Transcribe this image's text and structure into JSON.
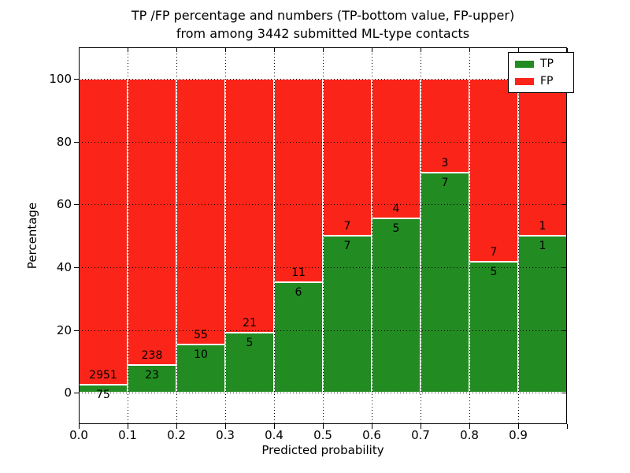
{
  "title_line1": "TP /FP percentage and numbers (TP-bottom value, FP-upper)",
  "title_line2": "from among 3442 submitted ML-type contacts",
  "chart_data": {
    "type": "bar",
    "stacked": true,
    "normalized": "each bin scaled to 100%",
    "title": "TP /FP percentage and numbers (TP-bottom value, FP-upper)\nfrom among 3442 submitted ML-type contacts",
    "xlabel": "Predicted probability",
    "ylabel": "Percentage",
    "bins": [
      {
        "x_start": 0.0,
        "x_end": 0.1
      },
      {
        "x_start": 0.1,
        "x_end": 0.2
      },
      {
        "x_start": 0.2,
        "x_end": 0.3
      },
      {
        "x_start": 0.3,
        "x_end": 0.4
      },
      {
        "x_start": 0.4,
        "x_end": 0.5
      },
      {
        "x_start": 0.5,
        "x_end": 0.6
      },
      {
        "x_start": 0.6,
        "x_end": 0.7
      },
      {
        "x_start": 0.7,
        "x_end": 0.8
      },
      {
        "x_start": 0.8,
        "x_end": 0.9
      },
      {
        "x_start": 0.9,
        "x_end": 1.0
      }
    ],
    "series": [
      {
        "name": "TP",
        "color": "#228b22",
        "counts": [
          75,
          23,
          10,
          5,
          6,
          7,
          5,
          7,
          5,
          1
        ]
      },
      {
        "name": "FP",
        "color": "#fb2418",
        "counts": [
          2951,
          238,
          55,
          21,
          11,
          7,
          4,
          3,
          7,
          1
        ]
      }
    ],
    "annotation_note": "FP count printed above the TP/FP boundary, TP count below it",
    "x_ticks": [
      "0.0",
      "0.1",
      "0.2",
      "0.3",
      "0.4",
      "0.5",
      "0.6",
      "0.7",
      "0.8",
      "0.9"
    ],
    "y_ticks": [
      "0",
      "20",
      "40",
      "60",
      "80",
      "100"
    ],
    "y_tick_values": [
      0,
      20,
      40,
      60,
      80,
      100
    ],
    "xlim": [
      0.0,
      1.0
    ],
    "ylim": [
      -10,
      110
    ],
    "grid": "dotted",
    "legend_position": "upper right",
    "legend": [
      {
        "label": "TP",
        "color": "#228b22"
      },
      {
        "label": "FP",
        "color": "#fb2418"
      }
    ]
  }
}
